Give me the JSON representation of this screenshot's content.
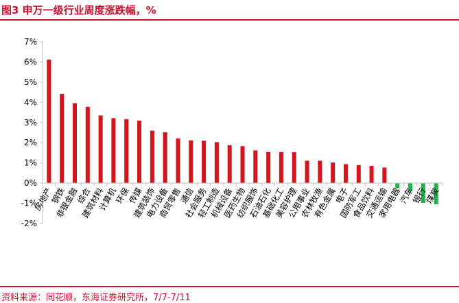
{
  "header": {
    "title": "图3  申万一级行业周度涨跌幅，%"
  },
  "footer": {
    "source": "资料来源：同花顺，东海证券研究所，7/7-7/11"
  },
  "colors": {
    "brand": "#c8102e",
    "positive": "#d2161e",
    "negative": "#22b14c",
    "axis": "#bfbfbf"
  },
  "chart_data": {
    "type": "bar",
    "title": "",
    "xlabel": "",
    "ylabel": "",
    "ylim": [
      -2,
      7
    ],
    "yticks": [
      7,
      6,
      5,
      4,
      3,
      2,
      1,
      0,
      -1,
      -2
    ],
    "ytick_labels": [
      "7%",
      "6%",
      "5%",
      "4%",
      "3%",
      "2%",
      "1%",
      "0%",
      "-1%",
      "-2%"
    ],
    "grid": false,
    "legend": "none",
    "categories": [
      "房地产",
      "钢铁",
      "非银金融",
      "综合",
      "建筑材料",
      "计算机",
      "环保",
      "传媒",
      "建筑装饰",
      "电力设备",
      "商贸零售",
      "通信",
      "社会服务",
      "轻工制造",
      "机械设备",
      "医药生物",
      "纺织服饰",
      "石油石化",
      "基础化工",
      "美容护理",
      "公用事业",
      "农林牧渔",
      "有色金属",
      "电子",
      "国防军工",
      "食品饮料",
      "交通运输",
      "家用电器",
      "汽车",
      "银行",
      "煤炭"
    ],
    "values": [
      6.12,
      4.42,
      3.96,
      3.78,
      3.35,
      3.22,
      3.17,
      3.1,
      2.6,
      2.52,
      2.21,
      2.12,
      2.1,
      2.03,
      1.88,
      1.83,
      1.62,
      1.54,
      1.54,
      1.53,
      1.11,
      1.11,
      1.02,
      0.94,
      0.89,
      0.85,
      0.77,
      -0.25,
      -0.4,
      -0.98,
      -1.05
    ]
  }
}
